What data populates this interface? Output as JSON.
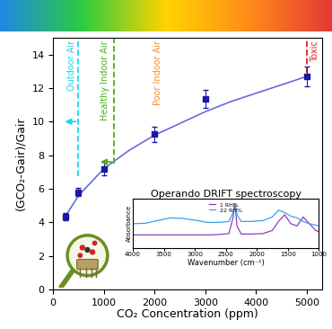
{
  "chart_data": {
    "type": "scatter",
    "xlabel": "CO₂ Concentration (ppm)",
    "ylabel": "(GCO₂-Gair)/Gair",
    "xlim": [
      0,
      5300
    ],
    "xticks": [
      0,
      1000,
      2000,
      3000,
      4000,
      5000
    ],
    "ylim": [
      0,
      15
    ],
    "yticks": [
      0,
      2,
      4,
      6,
      8,
      10,
      12,
      14
    ],
    "series": [
      {
        "type": "scatter",
        "color": "#1a1aa6",
        "marker": "square",
        "x": [
          250,
          500,
          1000,
          2000,
          3000,
          5000
        ],
        "values": [
          4.35,
          5.8,
          7.2,
          9.25,
          11.35,
          12.7
        ],
        "errors": [
          0.2,
          0.25,
          0.4,
          0.45,
          0.55,
          0.6
        ]
      },
      {
        "type": "line",
        "color": "#6b6bd8",
        "line_style": "solid",
        "x": [
          250,
          500,
          1000,
          1500,
          2000,
          2500,
          3000,
          3500,
          4000,
          4500,
          5000
        ],
        "values": [
          4.4,
          5.6,
          7.2,
          8.3,
          9.2,
          9.9,
          10.6,
          11.2,
          11.7,
          12.2,
          12.7
        ]
      }
    ],
    "thresholds": [
      {
        "label": "Outdoor Air",
        "x": 500,
        "color": "#19d8ee"
      },
      {
        "label": "Healthy Indoor Air",
        "x": 1200,
        "color": "#4caf1a"
      },
      {
        "label": "Toxic",
        "x": 5000,
        "color": "#e02020"
      }
    ],
    "annotations": [
      {
        "text": "Poor Indoor Air",
        "color": "#ff8c1a"
      }
    ],
    "color_scale": {
      "colors": [
        "#1e88e5",
        "#2ecc40",
        "#ffd400",
        "#ff8c1a",
        "#e53935"
      ]
    },
    "inset": {
      "type": "line",
      "title": "Operando DRIFT spectroscopy",
      "xlabel": "Wavenumber (cm⁻¹)",
      "ylabel": "Absorbance",
      "xlim": [
        4000,
        1000
      ],
      "xticks": [
        4000,
        3500,
        3000,
        2500,
        2000,
        1500,
        1000
      ],
      "ylim": [
        0,
        1.1
      ],
      "yticks": [],
      "tick_labels": "x",
      "legend": "upper center",
      "x": [
        4000,
        3800,
        3600,
        3400,
        3200,
        3000,
        2800,
        2600,
        2450,
        2380,
        2360,
        2340,
        2320,
        2250,
        2100,
        1900,
        1750,
        1650,
        1550,
        1450,
        1350,
        1250,
        1150,
        1050,
        1000
      ],
      "series": [
        {
          "name": "1 RH%",
          "color": "#8b3fb8",
          "values": [
            0.3,
            0.3,
            0.3,
            0.3,
            0.3,
            0.3,
            0.3,
            0.31,
            0.33,
            0.7,
            0.95,
            0.85,
            0.5,
            0.32,
            0.32,
            0.33,
            0.4,
            0.6,
            0.75,
            0.55,
            0.5,
            0.7,
            0.55,
            0.4,
            0.38
          ]
        },
        {
          "name": "22 RH%",
          "color": "#3aa0e8",
          "values": [
            0.55,
            0.56,
            0.62,
            0.68,
            0.67,
            0.63,
            0.58,
            0.58,
            0.6,
            0.8,
            1.0,
            0.95,
            0.75,
            0.6,
            0.6,
            0.62,
            0.7,
            0.85,
            0.8,
            0.72,
            0.68,
            0.6,
            0.55,
            0.52,
            0.5
          ]
        }
      ]
    }
  }
}
